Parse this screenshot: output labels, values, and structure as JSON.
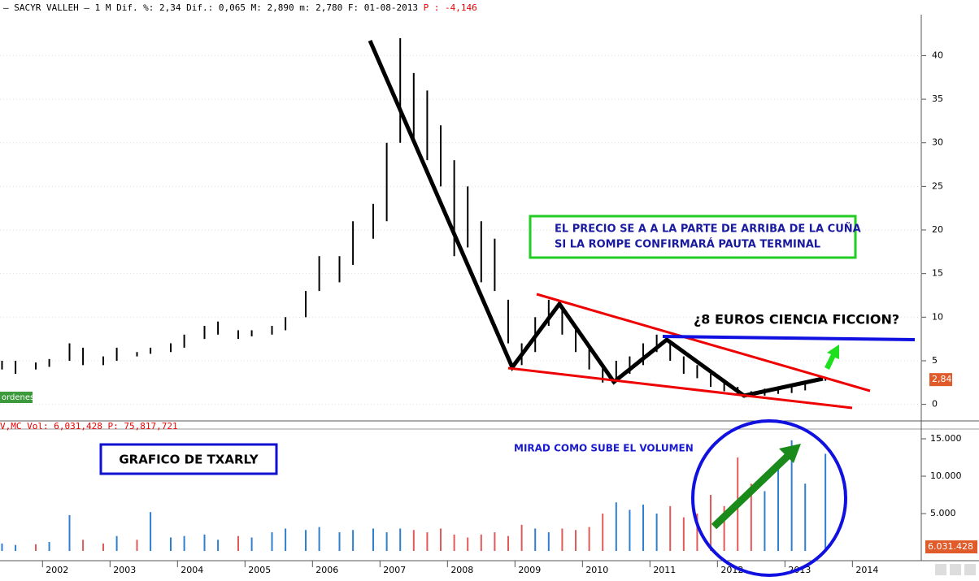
{
  "header": {
    "title": "– SACYR VALLEH – 1 M Dif. %: 2,34 Dif.: 0,065 M: 2,890 m: 2,780 F: 01-08-2013",
    "change": "P : -4,146"
  },
  "chart_data": [
    {
      "type": "hilo",
      "color": "#000000",
      "x": [
        2001.4,
        2001.6,
        2001.9,
        2002.1,
        2002.4,
        2002.6,
        2002.9,
        2003.1,
        2003.4,
        2003.6,
        2003.9,
        2004.1,
        2004.4,
        2004.6,
        2004.9,
        2005.1,
        2005.4,
        2005.6,
        2005.9,
        2006.1,
        2006.4,
        2006.6,
        2006.9,
        2007.1,
        2007.3,
        2007.5,
        2007.7,
        2007.9,
        2008.1,
        2008.3,
        2008.5,
        2008.7,
        2008.9,
        2009.1,
        2009.3,
        2009.5,
        2009.7,
        2009.9,
        2010.1,
        2010.3,
        2010.5,
        2010.7,
        2010.9,
        2011.1,
        2011.3,
        2011.5,
        2011.7,
        2011.9,
        2012.1,
        2012.3,
        2012.5,
        2012.7,
        2012.9,
        2013.1,
        2013.3,
        2013.6
      ],
      "high": [
        5,
        5,
        4.8,
        5.2,
        7,
        6.5,
        5.5,
        6.5,
        6,
        6.5,
        7,
        8,
        9,
        9.5,
        8.5,
        8.5,
        9,
        10,
        13,
        17,
        17,
        21,
        23,
        30,
        42,
        38,
        36,
        32,
        28,
        25,
        21,
        19,
        12,
        7,
        10,
        12,
        11,
        9,
        6.5,
        4.5,
        5,
        5.5,
        7,
        8,
        7,
        5.5,
        4.5,
        3.5,
        2.5,
        2,
        1.5,
        1.8,
        2,
        2,
        2.5,
        3
      ],
      "low": [
        4,
        3.5,
        4,
        4.3,
        5,
        4.5,
        4.5,
        5,
        5.5,
        5.8,
        6,
        6.5,
        7.5,
        8,
        7.5,
        7.8,
        8,
        8.5,
        10,
        13,
        14,
        16,
        19,
        21,
        30,
        30,
        28,
        25,
        17,
        18,
        14,
        13,
        7,
        4.5,
        6,
        9,
        8,
        6,
        4,
        2.5,
        3,
        3.5,
        4.5,
        6,
        5,
        3.5,
        3,
        2,
        1.5,
        1,
        0.8,
        1,
        1.2,
        1.3,
        1.6,
        2.7
      ],
      "xlim": [
        2001.37,
        2015.02
      ],
      "xticks": [
        2002,
        2003,
        2004,
        2005,
        2006,
        2007,
        2008,
        2009,
        2010,
        2011,
        2012,
        2013,
        2014
      ],
      "ylim": [
        -1.9,
        44.7
      ],
      "yticks": [
        0,
        5,
        10,
        15,
        20,
        25,
        30,
        35,
        40
      ],
      "grid": true,
      "last_price": {
        "value": 2.84,
        "label": "2,84"
      },
      "tag": "ordenes"
    },
    {
      "type": "bar",
      "title": "V,MC Vol: 6,031,428",
      "subtitle": "P: 75,817,721",
      "values": [
        1000,
        800,
        900,
        1200,
        4800,
        1500,
        1000,
        2000,
        1500,
        5200,
        1800,
        2000,
        2200,
        1500,
        2000,
        1800,
        2500,
        3000,
        2800,
        3200,
        2500,
        2800,
        3000,
        2500,
        3000,
        2800,
        2500,
        3000,
        2200,
        1800,
        2200,
        2500,
        2000,
        3500,
        3000,
        2500,
        3000,
        2800,
        3200,
        5000,
        6500,
        5500,
        6200,
        5000,
        6000,
        4500,
        5000,
        7500,
        6000,
        12500,
        9000,
        8000,
        11000,
        14800,
        9000,
        13000
      ],
      "up_color": "#2f7fd0",
      "down_color": "#e05a5a",
      "ylim": [
        -1300,
        16090
      ],
      "yticks": [
        {
          "value": 5000,
          "label": "5.000"
        },
        {
          "value": 10000,
          "label": "10.000"
        },
        {
          "value": 15000,
          "label": "15.000"
        }
      ],
      "last_label": "6.031.428"
    }
  ],
  "annotations": {
    "box_line1": "EL PRECIO SE A A LA PARTE DE ARRIBA DE LA CUÑA",
    "box_line2": "SI LA ROMPE CONFIRMARÁ PAUTA TERMINAL",
    "question": "¿8 EUROS CIENCIA FICCION?",
    "volume_note": "MIRAD COMO SUBE EL VOLUMEN",
    "author": "GRAFICO DE TXARLY"
  }
}
